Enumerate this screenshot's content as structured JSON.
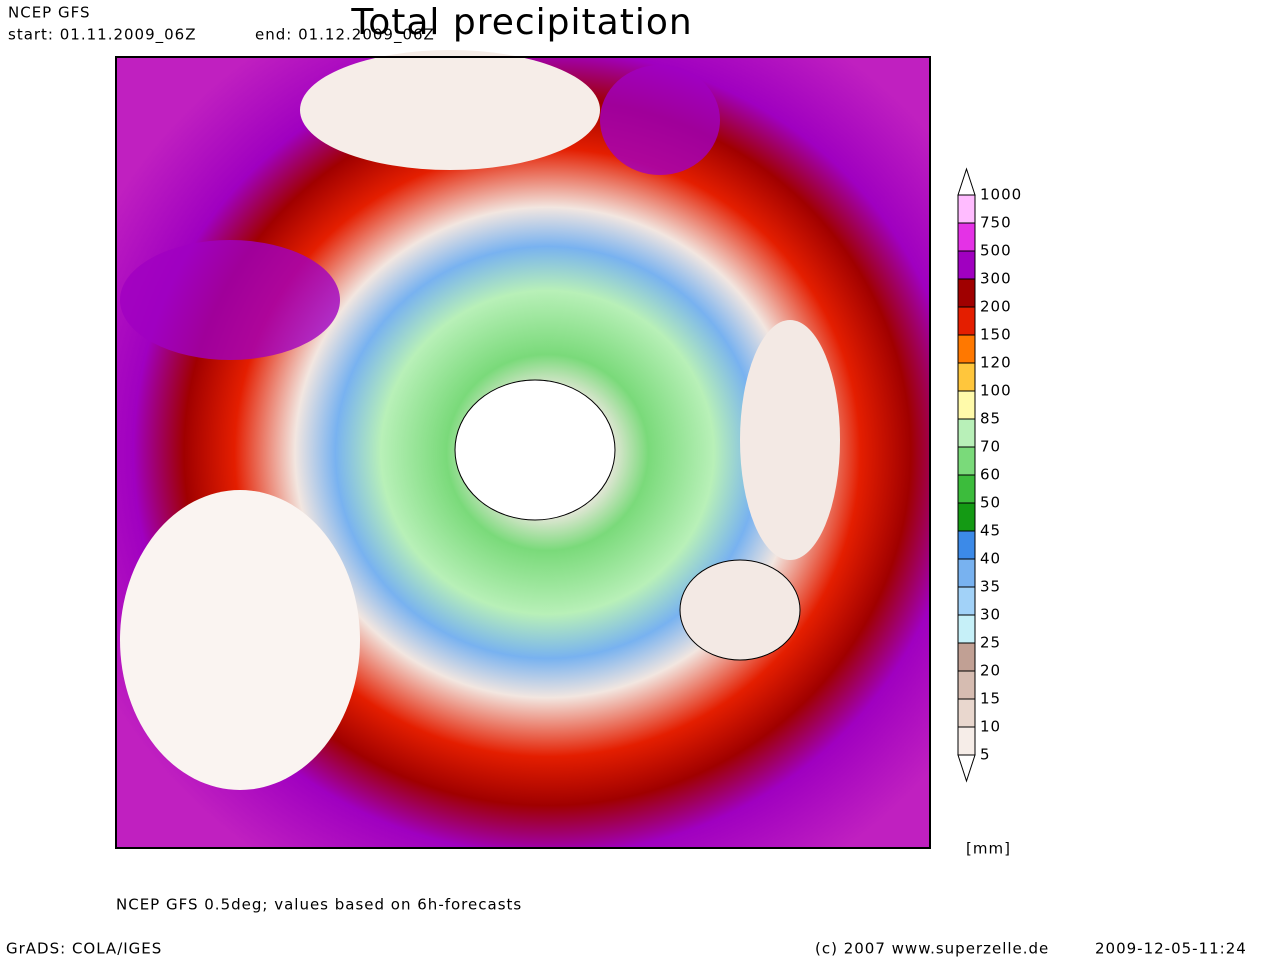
{
  "header": {
    "model": "NCEP GFS",
    "start": "start: 01.11.2009_06Z",
    "end": "end: 01.12.2009_06Z",
    "title": "Total precipitation"
  },
  "colorbar": {
    "levels": [
      5,
      10,
      15,
      20,
      25,
      30,
      35,
      40,
      45,
      50,
      60,
      70,
      85,
      100,
      120,
      150,
      200,
      300,
      500,
      750,
      1000
    ],
    "colors": [
      "#f6ede8",
      "#e9d7ce",
      "#d6bcb1",
      "#c1a094",
      "#c6f0f8",
      "#a2d2f8",
      "#78b2f0",
      "#3c8ae8",
      "#149a14",
      "#3cbc3c",
      "#7ada7a",
      "#b8f0b8",
      "#fffaaa",
      "#ffc63c",
      "#ff7800",
      "#e41e00",
      "#a00000",
      "#a000c0",
      "#e432e6",
      "#ffbcff"
    ],
    "unit": "[mm]"
  },
  "footer": {
    "note": "NCEP GFS 0.5deg; values based on 6h-forecasts",
    "software": "GrADS: COLA/IGES",
    "copyright": "(c) 2007 www.superzelle.de",
    "timestamp": "2009-12-05-11:24"
  }
}
